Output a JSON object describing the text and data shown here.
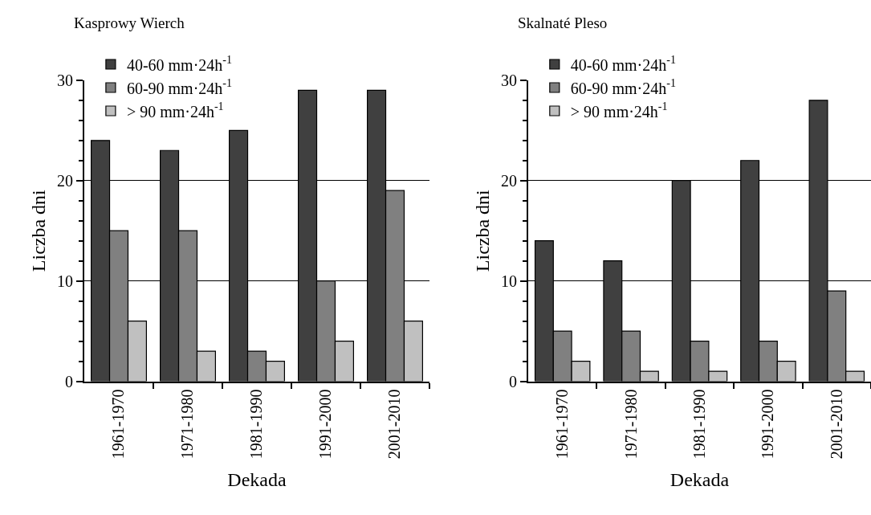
{
  "chart_data": [
    {
      "type": "bar",
      "title": "Kasprowy Wierch",
      "xlabel": "Dekada",
      "ylabel": "Liczba dni",
      "categories": [
        "1961-1970",
        "1971-1980",
        "1981-1990",
        "1991-2000",
        "2001-2010"
      ],
      "ylim": [
        0,
        30
      ],
      "yticks": [
        0,
        10,
        20,
        30
      ],
      "grid": "y",
      "legend": "top left",
      "series": [
        {
          "name": "40-60 mm·24h$^{-1}$",
          "color": "#404040",
          "values": [
            24,
            23,
            25,
            29,
            29
          ]
        },
        {
          "name": "60-90 mm·24h$^{-1}$",
          "color": "#808080",
          "values": [
            15,
            15,
            3,
            10,
            19
          ]
        },
        {
          "name": "> 90 mm·24h$^{-1}$",
          "color": "#c0c0c0",
          "values": [
            6,
            3,
            2,
            4,
            6
          ]
        }
      ]
    },
    {
      "type": "bar",
      "title": "Skalnaté Pleso",
      "xlabel": "Dekada",
      "ylabel": "Liczba dni",
      "categories": [
        "1961-1970",
        "1971-1980",
        "1981-1990",
        "1991-2000",
        "2001-2010"
      ],
      "ylim": [
        0,
        30
      ],
      "yticks": [
        0,
        10,
        20,
        30
      ],
      "grid": "y",
      "legend": "top left",
      "series": [
        {
          "name": "40-60 mm·24h$^{-1}$",
          "color": "#404040",
          "values": [
            14,
            12,
            20,
            22,
            28
          ]
        },
        {
          "name": "60-90 mm·24h$^{-1}$",
          "color": "#808080",
          "values": [
            5,
            5,
            4,
            4,
            9
          ]
        },
        {
          "name": "> 90 mm·24h$^{-1}$",
          "color": "#c0c0c0",
          "values": [
            2,
            1,
            1,
            2,
            1
          ]
        }
      ]
    }
  ]
}
